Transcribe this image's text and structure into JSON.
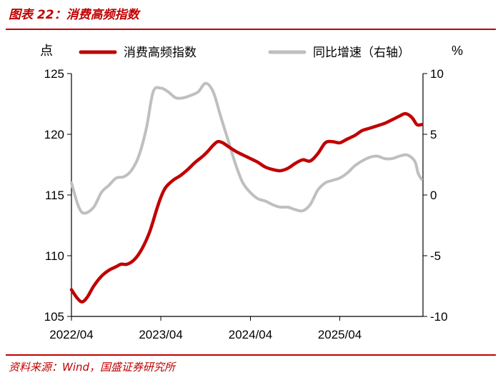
{
  "header": {
    "title": "图表 22：消费高频指数"
  },
  "footer": {
    "source": "资料来源：Wind，国盛证券研究所"
  },
  "chart_data": {
    "type": "line",
    "left_unit": "点",
    "right_unit": "%",
    "legend_position": "top",
    "grid": false,
    "x_ticks": [
      "2022/04",
      "2023/04",
      "2024/04",
      "2025/04"
    ],
    "y_left": {
      "min": 105,
      "max": 125,
      "ticks": [
        105,
        110,
        115,
        120,
        125
      ]
    },
    "y_right": {
      "min": -10,
      "max": 10,
      "ticks": [
        -10,
        -5,
        0,
        5,
        10
      ]
    },
    "series": [
      {
        "name": "消费高频指数",
        "axis": "left",
        "color": "#c00000",
        "points": [
          [
            "2022-04-01",
            107.2
          ],
          [
            "2022-04-25",
            106.5
          ],
          [
            "2022-05-15",
            106.2
          ],
          [
            "2022-06-05",
            106.6
          ],
          [
            "2022-07-01",
            107.5
          ],
          [
            "2022-08-01",
            108.3
          ],
          [
            "2022-09-01",
            108.8
          ],
          [
            "2022-10-01",
            109.1
          ],
          [
            "2022-10-20",
            109.3
          ],
          [
            "2022-11-15",
            109.3
          ],
          [
            "2022-12-15",
            109.7
          ],
          [
            "2023-01-15",
            110.6
          ],
          [
            "2023-02-15",
            112.0
          ],
          [
            "2023-03-15",
            113.8
          ],
          [
            "2023-04-01",
            114.8
          ],
          [
            "2023-04-20",
            115.6
          ],
          [
            "2023-05-20",
            116.2
          ],
          [
            "2023-06-20",
            116.6
          ],
          [
            "2023-07-20",
            117.1
          ],
          [
            "2023-08-20",
            117.7
          ],
          [
            "2023-09-20",
            118.2
          ],
          [
            "2023-10-10",
            118.6
          ],
          [
            "2023-11-01",
            119.1
          ],
          [
            "2023-11-20",
            119.4
          ],
          [
            "2023-12-10",
            119.3
          ],
          [
            "2024-01-01",
            119.0
          ],
          [
            "2024-02-01",
            118.6
          ],
          [
            "2024-03-01",
            118.3
          ],
          [
            "2024-04-01",
            118.0
          ],
          [
            "2024-05-01",
            117.7
          ],
          [
            "2024-06-01",
            117.3
          ],
          [
            "2024-07-01",
            117.1
          ],
          [
            "2024-08-01",
            117.0
          ],
          [
            "2024-09-01",
            117.2
          ],
          [
            "2024-10-01",
            117.6
          ],
          [
            "2024-11-01",
            117.9
          ],
          [
            "2024-12-01",
            117.8
          ],
          [
            "2025-01-01",
            118.4
          ],
          [
            "2025-02-01",
            119.3
          ],
          [
            "2025-03-01",
            119.4
          ],
          [
            "2025-04-01",
            119.3
          ],
          [
            "2025-05-01",
            119.6
          ],
          [
            "2025-06-01",
            119.9
          ],
          [
            "2025-07-01",
            120.3
          ],
          [
            "2025-08-01",
            120.5
          ],
          [
            "2025-09-01",
            120.7
          ],
          [
            "2025-10-01",
            120.9
          ],
          [
            "2025-11-01",
            121.2
          ],
          [
            "2025-12-01",
            121.5
          ],
          [
            "2025-12-25",
            121.7
          ],
          [
            "2026-01-20",
            121.4
          ],
          [
            "2026-02-10",
            120.8
          ],
          [
            "2026-03-01",
            120.8
          ]
        ]
      },
      {
        "name": "同比增速（右轴）",
        "axis": "right",
        "color": "#bfbfbf",
        "points": [
          [
            "2022-04-01",
            1.0
          ],
          [
            "2022-05-01",
            -1.0
          ],
          [
            "2022-05-25",
            -1.5
          ],
          [
            "2022-07-01",
            -1.0
          ],
          [
            "2022-08-01",
            0.2
          ],
          [
            "2022-09-01",
            0.8
          ],
          [
            "2022-10-01",
            1.4
          ],
          [
            "2022-11-01",
            1.5
          ],
          [
            "2022-12-01",
            2.0
          ],
          [
            "2023-01-01",
            3.2
          ],
          [
            "2023-02-01",
            5.5
          ],
          [
            "2023-03-01",
            8.5
          ],
          [
            "2023-04-01",
            8.8
          ],
          [
            "2023-05-01",
            8.5
          ],
          [
            "2023-06-01",
            8.0
          ],
          [
            "2023-07-01",
            8.0
          ],
          [
            "2023-08-01",
            8.2
          ],
          [
            "2023-09-01",
            8.5
          ],
          [
            "2023-10-01",
            9.2
          ],
          [
            "2023-11-01",
            8.5
          ],
          [
            "2023-12-01",
            6.5
          ],
          [
            "2024-01-01",
            4.5
          ],
          [
            "2024-02-01",
            2.5
          ],
          [
            "2024-03-01",
            1.0
          ],
          [
            "2024-04-01",
            0.2
          ],
          [
            "2024-05-01",
            -0.3
          ],
          [
            "2024-06-01",
            -0.5
          ],
          [
            "2024-07-01",
            -0.8
          ],
          [
            "2024-08-01",
            -1.0
          ],
          [
            "2024-09-01",
            -1.0
          ],
          [
            "2024-10-01",
            -1.2
          ],
          [
            "2024-11-01",
            -1.3
          ],
          [
            "2024-12-01",
            -0.8
          ],
          [
            "2025-01-01",
            0.4
          ],
          [
            "2025-02-01",
            1.0
          ],
          [
            "2025-03-01",
            1.2
          ],
          [
            "2025-04-01",
            1.4
          ],
          [
            "2025-05-01",
            1.8
          ],
          [
            "2025-06-01",
            2.4
          ],
          [
            "2025-07-01",
            2.8
          ],
          [
            "2025-08-01",
            3.1
          ],
          [
            "2025-09-01",
            3.2
          ],
          [
            "2025-10-01",
            3.0
          ],
          [
            "2025-11-01",
            3.0
          ],
          [
            "2025-12-01",
            3.2
          ],
          [
            "2026-01-01",
            3.3
          ],
          [
            "2026-02-01",
            2.8
          ],
          [
            "2026-02-15",
            1.8
          ],
          [
            "2026-03-01",
            1.3
          ]
        ]
      }
    ]
  }
}
